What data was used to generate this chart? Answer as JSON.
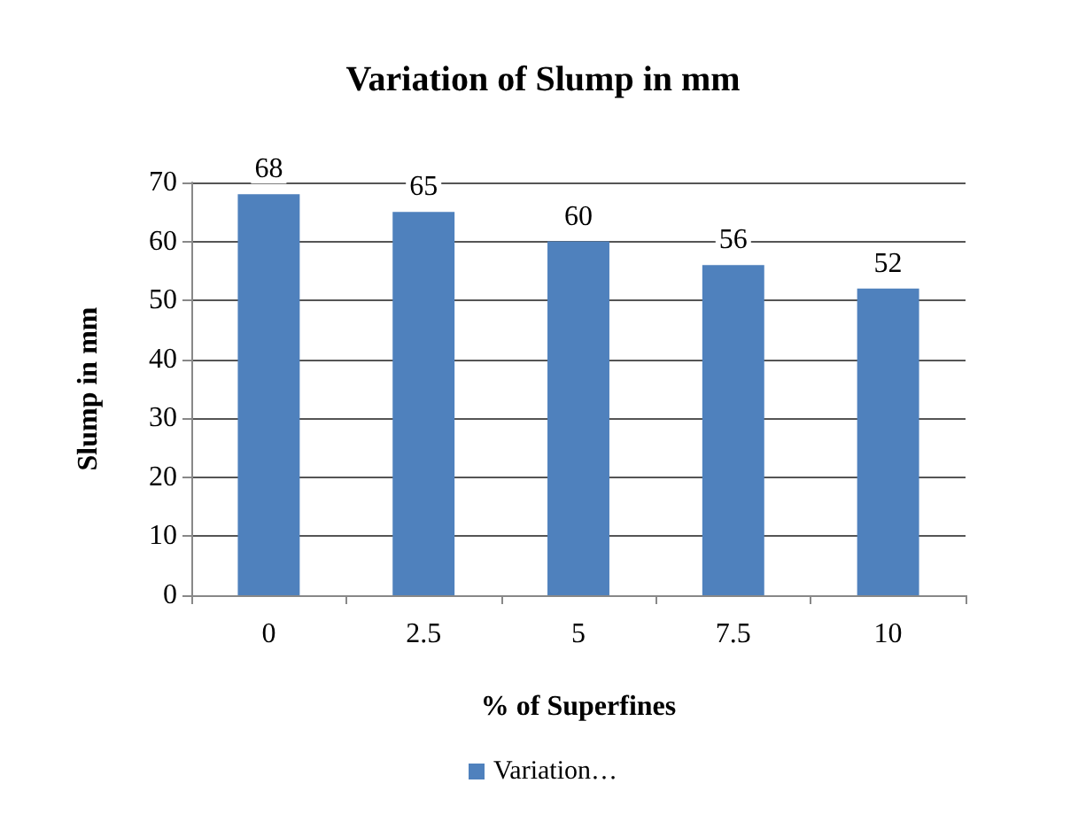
{
  "chart_data": {
    "type": "bar",
    "title": "Variation of Slump in mm",
    "xlabel": "% of Superfines",
    "ylabel": "Slump in mm",
    "categories": [
      "0",
      "2.5",
      "5",
      "7.5",
      "10"
    ],
    "series": [
      {
        "name": "Variation…",
        "color": "#4f81bd",
        "values": [
          68,
          65,
          60,
          56,
          52
        ]
      }
    ],
    "ylim": [
      0,
      70
    ],
    "yticks": [
      0,
      10,
      20,
      30,
      40,
      50,
      60,
      70
    ],
    "grid": "y",
    "legend": "bottom",
    "data_labels": true
  }
}
